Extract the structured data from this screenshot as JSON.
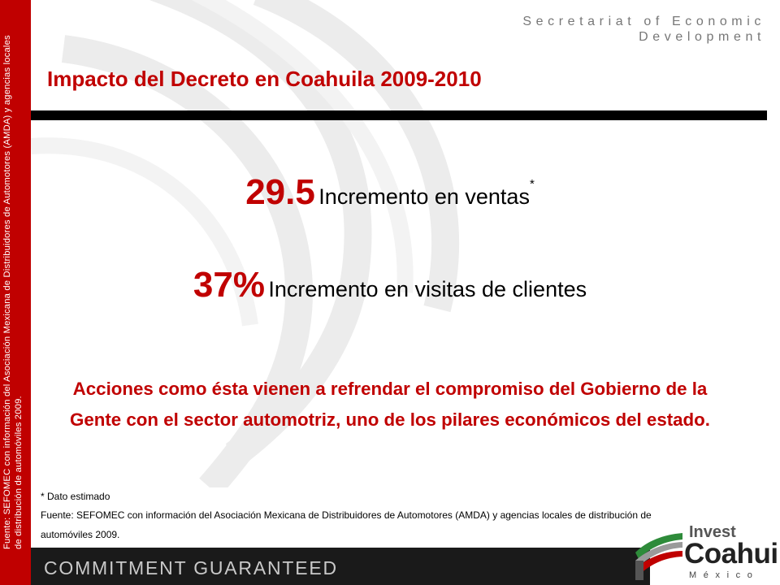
{
  "sidebar": {
    "source_vertical": "Fuente: SEFOMEC con información del Asociación Mexicana de Distribuidores de Automotores (AMDA) y agencias locales de distribución de automóviles 2009."
  },
  "header": {
    "secretariat_line1": "Secretariat of Economic",
    "secretariat_line2": "Development"
  },
  "title": "Impacto del Decreto en Coahuila 2009-2010",
  "stats": [
    {
      "value": "29.5",
      "label": "Incremento en ventas",
      "marker": "*"
    },
    {
      "value": "37%",
      "label": "Incremento en visitas de clientes"
    }
  ],
  "statement": "Acciones como ésta vienen a refrendar el compromiso del Gobierno de la Gente con el sector automotriz, uno de los pilares económicos del estado.",
  "footnote": "* Dato estimado",
  "source": "Fuente: SEFOMEC con información del Asociación Mexicana de Distribuidores de Automotores (AMDA) y agencias locales de distribución de automóviles 2009.",
  "footer": {
    "tagline": "COMMITMENT GUARANTEED"
  },
  "logo": {
    "invest": "Invest",
    "name": "Coahuila",
    "country": "México"
  },
  "colors": {
    "accent_red": "#c00000",
    "logo_green": "#2e8b3a",
    "band_dark": "#1a1a1a"
  }
}
